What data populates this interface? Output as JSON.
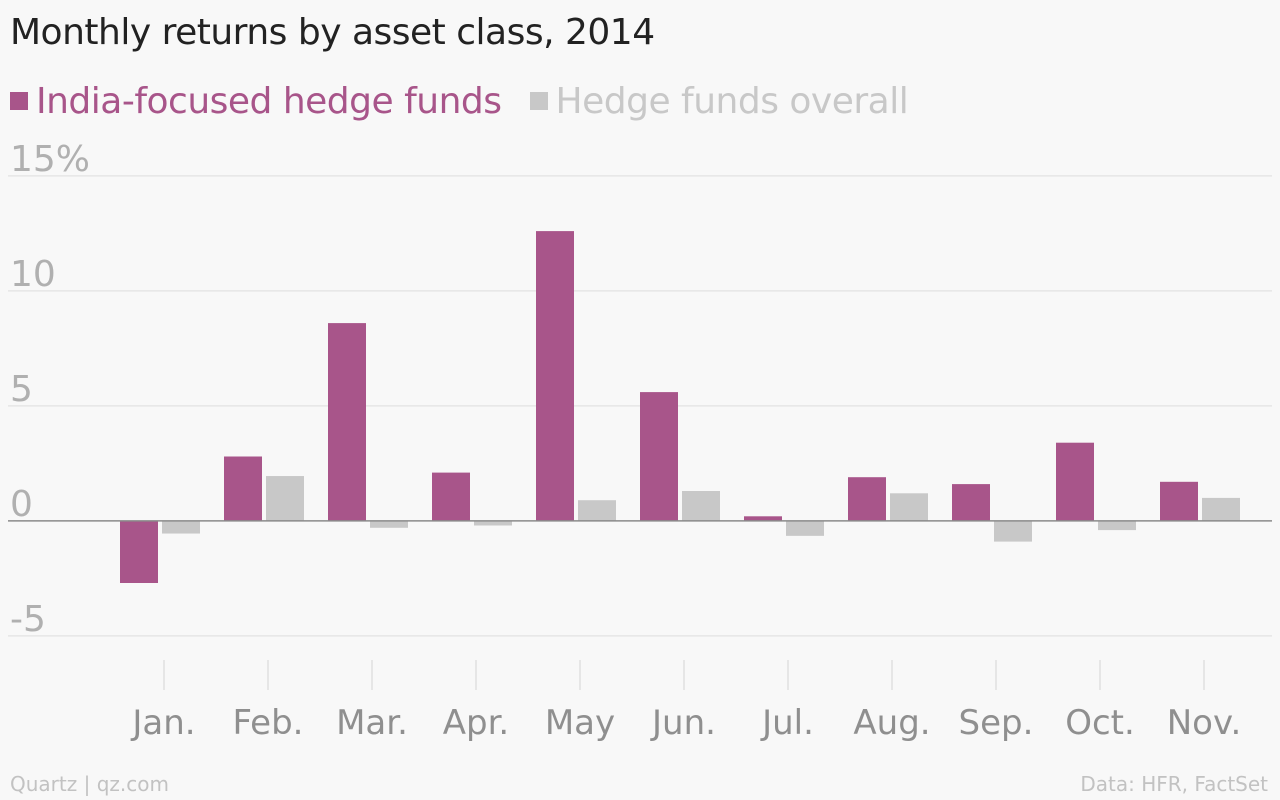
{
  "chart_data": {
    "type": "bar",
    "title": "Monthly returns by asset class, 2014",
    "categories": [
      "Jan.",
      "Feb.",
      "Mar.",
      "Apr.",
      "May",
      "Jun.",
      "Jul.",
      "Aug.",
      "Sep.",
      "Oct.",
      "Nov."
    ],
    "series": [
      {
        "name": "India-focused hedge funds",
        "color": "#a8558a",
        "values": [
          -2.7,
          2.8,
          8.6,
          2.1,
          12.6,
          5.6,
          0.2,
          1.9,
          1.6,
          3.4,
          1.7
        ]
      },
      {
        "name": "Hedge funds overall",
        "color": "#c8c8c8",
        "values": [
          -0.55,
          1.95,
          -0.3,
          -0.2,
          0.9,
          1.3,
          -0.65,
          1.2,
          -0.9,
          -0.4,
          1.0
        ]
      }
    ],
    "ylim": [
      -6.5,
      16.5
    ],
    "yticks": [
      15,
      10,
      5,
      0,
      -5
    ],
    "ytick_labels": [
      "15%",
      "10",
      "5",
      "0",
      "-5"
    ],
    "xlabel": "",
    "ylabel": "",
    "grid": true,
    "legend": "top-left"
  },
  "footer": {
    "credit": "Quartz | qz.com",
    "source": "Data: HFR, FactSet"
  }
}
